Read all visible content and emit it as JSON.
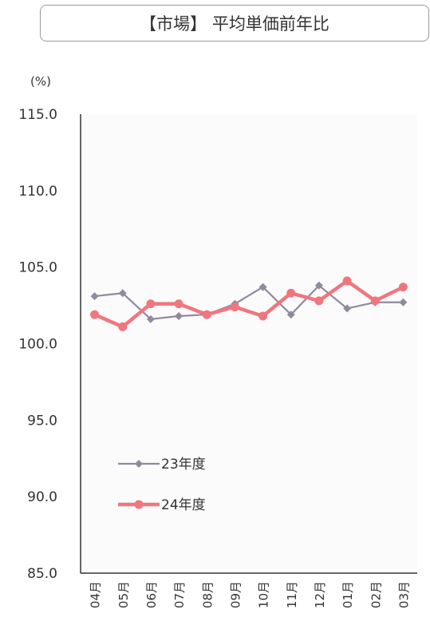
{
  "chart_data": {
    "type": "line",
    "title": "【市場】 平均単価前年比",
    "ylabel": "(%)",
    "xlabel": "",
    "categories": [
      "04月",
      "05月",
      "06月",
      "07月",
      "08月",
      "09月",
      "10月",
      "11月",
      "12月",
      "01月",
      "02月",
      "03月"
    ],
    "yticks": [
      "115.0",
      "110.0",
      "105.0",
      "100.0",
      "95.0",
      "90.0",
      "85.0"
    ],
    "ylim": [
      85,
      115
    ],
    "grid": false,
    "legend_position": "bottom-left",
    "series": [
      {
        "name": "23年度",
        "color": "#8f8a9e",
        "marker": "diamond",
        "values": [
          103.1,
          103.3,
          101.6,
          101.8,
          101.9,
          102.6,
          103.7,
          101.9,
          103.8,
          102.3,
          102.7,
          102.7
        ]
      },
      {
        "name": "24年度",
        "color": "#f0767e",
        "marker": "circle",
        "values": [
          101.9,
          101.1,
          102.6,
          102.6,
          101.9,
          102.4,
          101.8,
          103.3,
          102.8,
          104.1,
          102.8,
          103.7
        ]
      }
    ]
  }
}
